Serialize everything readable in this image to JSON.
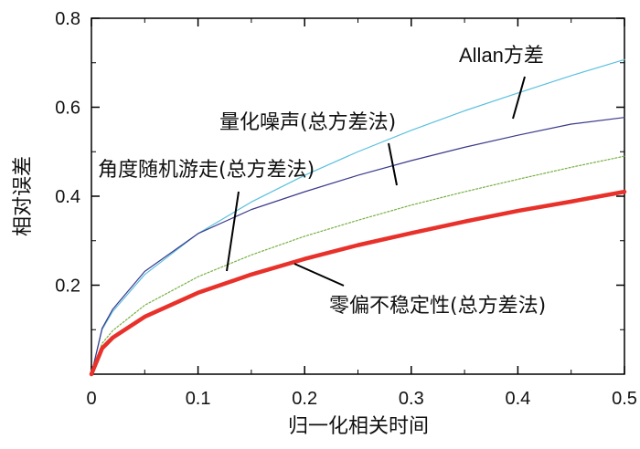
{
  "chart_data": {
    "type": "line",
    "title": "",
    "xlabel": "归一化相关时间",
    "ylabel": "相对误差",
    "xlim": [
      0,
      0.5
    ],
    "ylim": [
      0,
      0.8
    ],
    "x_ticks": [
      "0",
      "0.1",
      "0.2",
      "0.3",
      "0.4",
      "0.5"
    ],
    "y_ticks": [
      "0.2",
      "0.4",
      "0.6",
      "0.8"
    ],
    "grid": false,
    "legend": "none (series labeled by annotations with pointer lines)",
    "series": [
      {
        "name": "Allan方差",
        "color": "#5bc0de",
        "style": "thin",
        "x": [
          0,
          0.01,
          0.02,
          0.05,
          0.1,
          0.15,
          0.2,
          0.25,
          0.3,
          0.35,
          0.4,
          0.45,
          0.5
        ],
        "y": [
          0,
          0.1,
          0.141,
          0.224,
          0.316,
          0.387,
          0.447,
          0.5,
          0.548,
          0.592,
          0.632,
          0.671,
          0.707
        ]
      },
      {
        "name": "量化噪声(总方差法)",
        "color": "#3a3a8c",
        "style": "thin",
        "x": [
          0,
          0.01,
          0.02,
          0.05,
          0.1,
          0.15,
          0.2,
          0.25,
          0.3,
          0.35,
          0.4,
          0.45,
          0.5
        ],
        "y": [
          0,
          0.103,
          0.146,
          0.231,
          0.316,
          0.37,
          0.41,
          0.447,
          0.48,
          0.51,
          0.537,
          0.562,
          0.577
        ]
      },
      {
        "name": "角度随机游走(总方差法)",
        "color": "#77b043",
        "style": "dotted",
        "x": [
          0,
          0.01,
          0.02,
          0.05,
          0.1,
          0.15,
          0.2,
          0.25,
          0.3,
          0.35,
          0.4,
          0.45,
          0.5
        ],
        "y": [
          0,
          0.069,
          0.098,
          0.155,
          0.219,
          0.268,
          0.31,
          0.346,
          0.38,
          0.41,
          0.438,
          0.465,
          0.49
        ]
      },
      {
        "name": "零偏不稳定性(总方差法)",
        "color": "#e8312a",
        "style": "thick",
        "x": [
          0,
          0.01,
          0.02,
          0.05,
          0.1,
          0.15,
          0.2,
          0.25,
          0.3,
          0.35,
          0.4,
          0.45,
          0.5
        ],
        "y": [
          0,
          0.058,
          0.082,
          0.129,
          0.183,
          0.224,
          0.259,
          0.29,
          0.317,
          0.343,
          0.367,
          0.388,
          0.41
        ]
      }
    ],
    "annotations": [
      {
        "text": "Allan方差",
        "series": 0,
        "point_x": 0.395
      },
      {
        "text": "量化噪声(总方差法)",
        "series": 1,
        "point_x": 0.28
      },
      {
        "text": "角度随机游走(总方差法)",
        "series": 2,
        "point_x": 0.125
      },
      {
        "text": "零偏不稳定性(总方差法)",
        "series": 3,
        "point_x": 0.185
      }
    ]
  }
}
